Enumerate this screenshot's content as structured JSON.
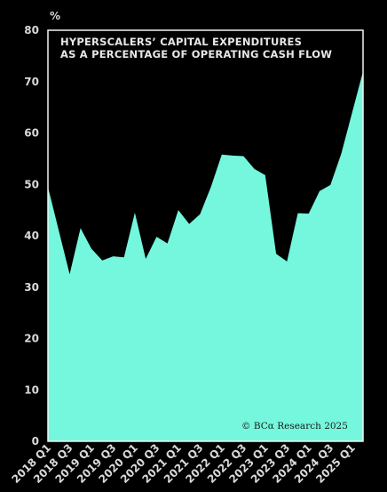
{
  "chart_data": {
    "type": "area",
    "title_lines": [
      "HYPERSCALERS’ CAPITAL EXPENDITURES",
      "AS A PERCENTAGE OF OPERATING CASH FLOW"
    ],
    "unit_label": "%",
    "credit": "© BCα Research 2025",
    "xlabel": "",
    "ylabel": "",
    "ylim": [
      0,
      80
    ],
    "y_ticks": [
      0,
      10,
      20,
      30,
      40,
      50,
      60,
      70,
      80
    ],
    "x_tick_labels": [
      "2018 Q1",
      "2018 Q3",
      "2019 Q1",
      "2019 Q3",
      "2020 Q1",
      "2020 Q3",
      "2021 Q1",
      "2021 Q3",
      "2022 Q1",
      "2022 Q3",
      "2023 Q1",
      "2023 Q3",
      "2024 Q1",
      "2024 Q3",
      "2025 Q1"
    ],
    "x": [
      "2018 Q1",
      "2018 Q2",
      "2018 Q3",
      "2018 Q4",
      "2019 Q1",
      "2019 Q2",
      "2019 Q3",
      "2019 Q4",
      "2020 Q1",
      "2020 Q2",
      "2020 Q3",
      "2020 Q4",
      "2021 Q1",
      "2021 Q2",
      "2021 Q3",
      "2021 Q4",
      "2022 Q1",
      "2022 Q2",
      "2022 Q3",
      "2022 Q4",
      "2023 Q1",
      "2023 Q2",
      "2023 Q3",
      "2023 Q4",
      "2024 Q1",
      "2024 Q2",
      "2024 Q3",
      "2024 Q4",
      "2025 Q1",
      "2025 Q2"
    ],
    "values": [
      49.5,
      41,
      32.5,
      41.5,
      37.5,
      35.2,
      36,
      35.8,
      44.5,
      35.5,
      39.8,
      38.5,
      45,
      42.3,
      44.2,
      49.5,
      55.8,
      55.6,
      55.5,
      53,
      51.8,
      36.5,
      35,
      44.4,
      44.3,
      48.7,
      49.9,
      56,
      64,
      72
    ],
    "grid": false,
    "legend": "none",
    "colors": {
      "fill": "#74f7dc",
      "background": "#000000",
      "text": "#d9d9d9"
    }
  }
}
